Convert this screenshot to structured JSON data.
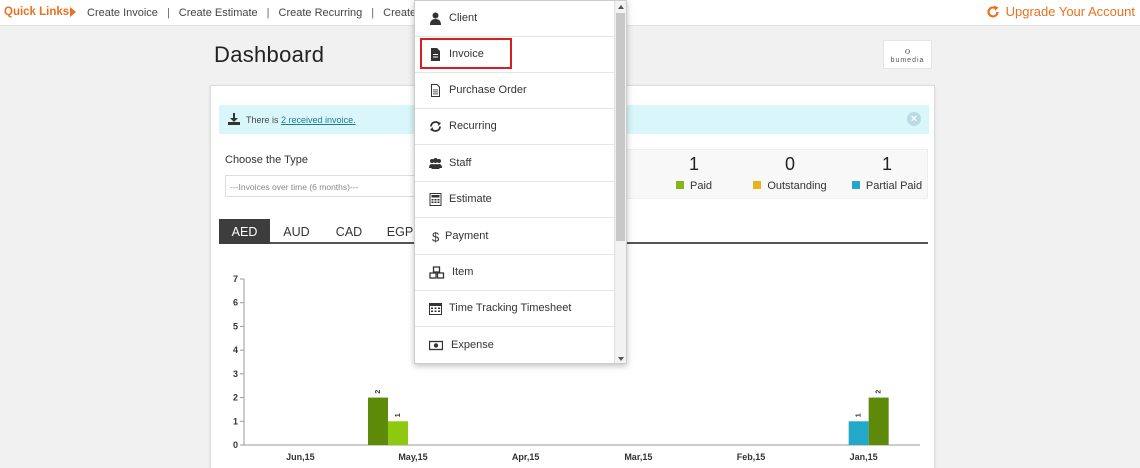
{
  "topbar": {
    "quick_links_label": "Quick Links",
    "links": [
      "Create Invoice",
      "Create Estimate",
      "Create Recurring",
      "Create Cli"
    ],
    "separator": "|",
    "upgrade_label": "Upgrade Your Account"
  },
  "header": {
    "title": "Dashboard",
    "logo_text": "bumedia"
  },
  "alert": {
    "prefix": "There is",
    "link_text": "2 received invoice."
  },
  "filter": {
    "label": "Choose the Type",
    "select_value": "---Invoices over time (6 months)---"
  },
  "stats": [
    {
      "value": "1",
      "label": "Paid",
      "color": "#8ab317"
    },
    {
      "value": "0",
      "label": "Outstanding",
      "color": "#e8b419"
    },
    {
      "value": "1",
      "label": "Partial Paid",
      "color": "#23a8c9"
    }
  ],
  "currency_tabs": [
    "AED",
    "AUD",
    "CAD",
    "EGP"
  ],
  "active_tab": "AED",
  "dropdown": {
    "items": [
      {
        "label": "Client",
        "icon": "user-icon"
      },
      {
        "label": "Invoice",
        "icon": "document-icon"
      },
      {
        "label": "Purchase Order",
        "icon": "file-outline-icon"
      },
      {
        "label": "Recurring",
        "icon": "refresh-icon"
      },
      {
        "label": "Staff",
        "icon": "group-icon"
      },
      {
        "label": "Estimate",
        "icon": "calculator-icon"
      },
      {
        "label": "Payment",
        "icon": "dollar-icon"
      },
      {
        "label": "Item",
        "icon": "cubes-icon"
      },
      {
        "label": "Time Tracking Timesheet",
        "icon": "calendar-icon"
      },
      {
        "label": "Expense",
        "icon": "money-icon"
      }
    ],
    "highlighted": "Invoice"
  },
  "chart_data": {
    "type": "bar",
    "categories": [
      "Jun,15",
      "May,15",
      "Apr,15",
      "Mar,15",
      "Feb,15",
      "Jan,15"
    ],
    "series": [
      {
        "color": "#5e8a0a",
        "values": [
          0,
          2,
          0,
          0,
          0,
          2
        ]
      },
      {
        "color": "#8fc90f",
        "values": [
          0,
          1,
          0,
          0,
          0,
          0
        ]
      },
      {
        "color": "#23a8c9",
        "values": [
          0,
          0,
          0,
          0,
          0,
          1
        ]
      }
    ],
    "ylim": [
      0,
      7
    ],
    "yticks": [
      0,
      1,
      2,
      3,
      4,
      5,
      6,
      7
    ],
    "grid": false
  }
}
